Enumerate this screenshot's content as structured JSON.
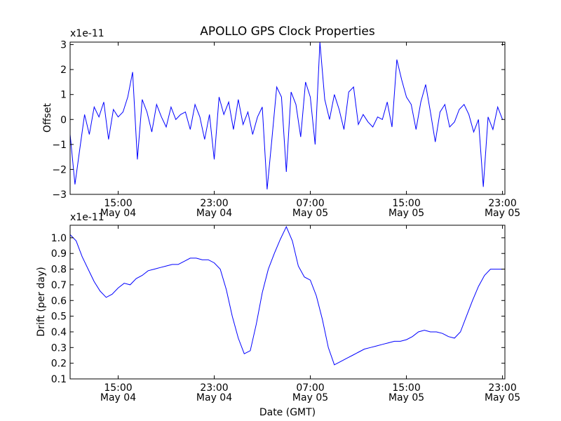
{
  "figure_title": "APOLLO GPS Clock Properties",
  "chart_data": [
    {
      "type": "line",
      "title": "APOLLO GPS Clock Properties",
      "ylabel": "Offset",
      "xlabel": "",
      "y_exponent_label": "x1e-11",
      "ylim": [
        -3,
        3.1
      ],
      "yticks": [
        -3,
        -2,
        -1,
        0,
        1,
        2,
        3
      ],
      "ytick_labels": [
        "−3",
        "−2",
        "−1",
        "0",
        "1",
        "2",
        "3"
      ],
      "x_unit": "hours since May 04 11:00 GMT",
      "xlim": [
        0,
        36.2
      ],
      "xticks": [
        4,
        12,
        20,
        28,
        36
      ],
      "xtick_labels": [
        [
          "15:00",
          "May 04"
        ],
        [
          "23:00",
          "May 04"
        ],
        [
          "07:00",
          "May 05"
        ],
        [
          "15:00",
          "May 05"
        ],
        [
          "23:00",
          "May 05"
        ]
      ],
      "series_color": "#0000ff",
      "series": [
        {
          "name": "",
          "x": [
            0,
            0.4,
            0.8,
            1.2,
            1.6,
            2,
            2.4,
            2.8,
            3.2,
            3.6,
            4,
            4.4,
            4.8,
            5.2,
            5.6,
            6,
            6.4,
            6.8,
            7.2,
            7.6,
            8,
            8.4,
            8.8,
            9.2,
            9.6,
            10,
            10.4,
            10.8,
            11.2,
            11.6,
            12,
            12.4,
            12.8,
            13.2,
            13.6,
            14,
            14.4,
            14.8,
            15.2,
            15.6,
            16,
            16.4,
            16.8,
            17.2,
            17.6,
            18,
            18.4,
            18.8,
            19.2,
            19.6,
            20,
            20.4,
            20.8,
            21.2,
            21.6,
            22,
            22.4,
            22.8,
            23.2,
            23.6,
            24,
            24.4,
            24.8,
            25.2,
            25.6,
            26,
            26.4,
            26.8,
            27.2,
            27.6,
            28,
            28.4,
            28.8,
            29.2,
            29.6,
            30,
            30.4,
            30.8,
            31.2,
            31.6,
            32,
            32.4,
            32.8,
            33.2,
            33.6,
            34,
            34.4,
            34.8,
            35.2,
            35.6,
            36
          ],
          "y": [
            -0.6,
            -2.6,
            -1.2,
            0.2,
            -0.6,
            0.5,
            0.1,
            0.7,
            -0.8,
            0.4,
            0.1,
            0.3,
            0.9,
            1.9,
            -1.6,
            0.8,
            0.3,
            -0.5,
            0.6,
            0.1,
            -0.3,
            0.5,
            0.0,
            0.2,
            0.3,
            -0.4,
            0.6,
            0.1,
            -0.8,
            0.2,
            -1.6,
            0.9,
            0.2,
            0.7,
            -0.4,
            0.8,
            -0.2,
            0.3,
            -0.6,
            0.1,
            0.5,
            -2.8,
            -0.8,
            1.3,
            0.9,
            -2.1,
            1.1,
            0.6,
            -0.7,
            1.5,
            0.9,
            -1.0,
            3.1,
            0.8,
            0.0,
            1.0,
            0.4,
            -0.4,
            1.1,
            1.3,
            -0.2,
            0.2,
            -0.1,
            -0.3,
            0.1,
            0.0,
            0.7,
            -0.3,
            2.4,
            1.6,
            0.9,
            0.6,
            -0.4,
            0.7,
            1.4,
            0.3,
            -0.9,
            0.3,
            0.6,
            -0.3,
            -0.1,
            0.4,
            0.6,
            0.2,
            -0.5,
            0.0,
            -2.7,
            0.1,
            -0.4,
            0.5,
            0.0
          ]
        }
      ]
    },
    {
      "type": "line",
      "title": "",
      "ylabel": "Drift (per day)",
      "xlabel": "Date (GMT)",
      "y_exponent_label": "x1e-11",
      "ylim": [
        0.1,
        1.08
      ],
      "yticks": [
        0.1,
        0.2,
        0.3,
        0.4,
        0.5,
        0.6,
        0.7,
        0.8,
        0.9,
        1.0
      ],
      "ytick_labels": [
        "0.1",
        "0.2",
        "0.3",
        "0.4",
        "0.5",
        "0.6",
        "0.7",
        "0.8",
        "0.9",
        "1.0"
      ],
      "x_unit": "hours since May 04 11:00 GMT",
      "xlim": [
        0,
        36.2
      ],
      "xticks": [
        4,
        12,
        20,
        28,
        36
      ],
      "xtick_labels": [
        [
          "15:00",
          "May 04"
        ],
        [
          "23:00",
          "May 04"
        ],
        [
          "07:00",
          "May 05"
        ],
        [
          "15:00",
          "May 05"
        ],
        [
          "23:00",
          "May 05"
        ]
      ],
      "series_color": "#0000ff",
      "series": [
        {
          "name": "",
          "x": [
            0,
            0.5,
            1,
            1.5,
            2,
            2.5,
            3,
            3.5,
            4,
            4.5,
            5,
            5.5,
            6,
            6.5,
            7,
            7.5,
            8,
            8.5,
            9,
            9.5,
            10,
            10.5,
            11,
            11.5,
            12,
            12.5,
            13,
            13.5,
            14,
            14.5,
            15,
            15.5,
            16,
            16.5,
            17,
            17.5,
            18,
            18.5,
            19,
            19.5,
            20,
            20.5,
            21,
            21.5,
            22,
            22.5,
            23,
            23.5,
            24,
            24.5,
            25,
            25.5,
            26,
            26.5,
            27,
            27.5,
            28,
            28.5,
            29,
            29.5,
            30,
            30.5,
            31,
            31.5,
            32,
            32.5,
            33,
            33.5,
            34,
            34.5,
            35,
            35.5,
            36
          ],
          "y": [
            1.02,
            0.98,
            0.88,
            0.8,
            0.72,
            0.66,
            0.62,
            0.64,
            0.68,
            0.71,
            0.7,
            0.74,
            0.76,
            0.79,
            0.8,
            0.81,
            0.82,
            0.83,
            0.83,
            0.85,
            0.87,
            0.87,
            0.86,
            0.86,
            0.84,
            0.8,
            0.67,
            0.5,
            0.36,
            0.26,
            0.28,
            0.45,
            0.65,
            0.8,
            0.9,
            0.99,
            1.07,
            0.98,
            0.82,
            0.75,
            0.73,
            0.63,
            0.48,
            0.3,
            0.19,
            0.21,
            0.23,
            0.25,
            0.27,
            0.29,
            0.3,
            0.31,
            0.32,
            0.33,
            0.34,
            0.34,
            0.35,
            0.37,
            0.4,
            0.41,
            0.4,
            0.4,
            0.39,
            0.37,
            0.36,
            0.4,
            0.5,
            0.6,
            0.69,
            0.76,
            0.8,
            0.8,
            0.8
          ]
        }
      ]
    }
  ]
}
